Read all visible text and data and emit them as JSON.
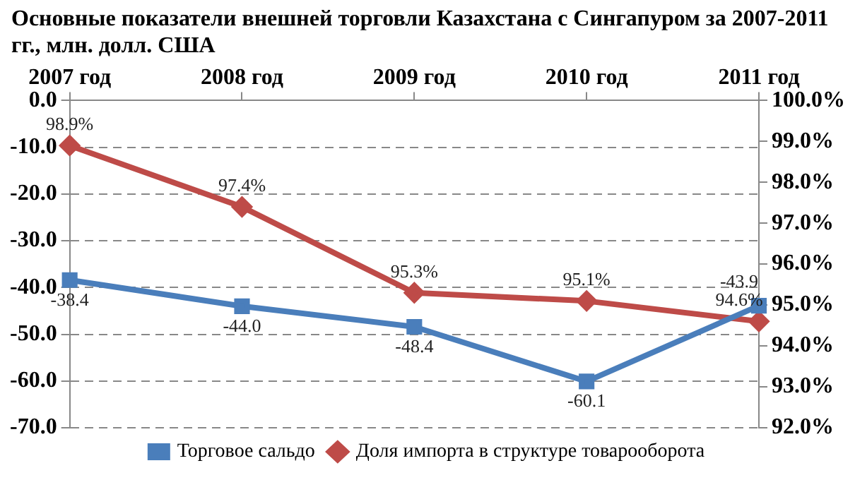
{
  "chart_data": {
    "type": "line",
    "title": "Основные показатели внешней торговли Казахстана с Сингапуром за 2007-2011 гг., млн. долл. США",
    "categories": [
      "2007 год",
      "2008 год",
      "2009 год",
      "2010 год",
      "2011 год"
    ],
    "series": [
      {
        "name": "Торговое сальдо",
        "color": "#4a7ebb",
        "marker": "square",
        "values": [
          -38.4,
          -44.0,
          -48.4,
          -60.1,
          -43.9
        ],
        "value_labels": [
          "-38.4",
          "-44.0",
          "-48.4",
          "-60.1",
          "-43.9"
        ]
      },
      {
        "name": "Доля импорта в структуре товарооборота",
        "color": "#be4b48",
        "marker": "diamond",
        "axis": "y2",
        "values": [
          98.9,
          97.4,
          95.3,
          95.1,
          94.6
        ],
        "value_labels": [
          "98.9%",
          "97.4%",
          "95.3%",
          "95.1%",
          "94.6%"
        ]
      }
    ],
    "ylim": [
      -70,
      0
    ],
    "yticks": [
      {
        "value": -70,
        "label": "-70.0"
      },
      {
        "value": -60,
        "label": "-60.0"
      },
      {
        "value": -50,
        "label": "-50.0"
      },
      {
        "value": -40,
        "label": "-40.0"
      },
      {
        "value": -30,
        "label": "-30.0"
      },
      {
        "value": -20,
        "label": "-20.0"
      },
      {
        "value": -10,
        "label": "-10.0"
      },
      {
        "value": 0,
        "label": "0.0"
      }
    ],
    "y2lim": [
      92,
      100
    ],
    "y2ticks": [
      {
        "value": 92,
        "label": "92.0%"
      },
      {
        "value": 93,
        "label": "93.0%"
      },
      {
        "value": 94,
        "label": "94.0%"
      },
      {
        "value": 95,
        "label": "95.0%"
      },
      {
        "value": 96,
        "label": "96.0%"
      },
      {
        "value": 97,
        "label": "97.0%"
      },
      {
        "value": 98,
        "label": "98.0%"
      },
      {
        "value": 99,
        "label": "99.0%"
      },
      {
        "value": 100,
        "label": "100.0%"
      }
    ],
    "grid": "y",
    "legend": "bottom",
    "line_style": "solid"
  }
}
